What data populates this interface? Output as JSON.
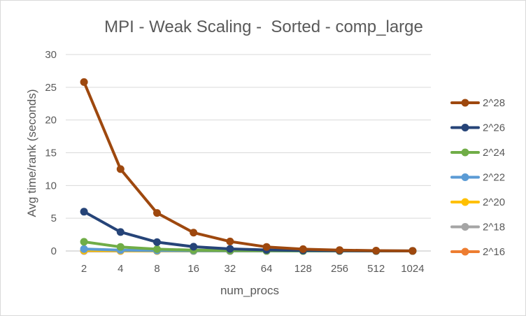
{
  "chart_data": {
    "type": "line",
    "title": "MPI - Weak Scaling -  Sorted - comp_large",
    "xlabel": "num_procs",
    "ylabel": "Avg time/rank (seconds)",
    "categories": [
      "2",
      "4",
      "8",
      "16",
      "32",
      "64",
      "128",
      "256",
      "512",
      "1024"
    ],
    "ylim": [
      0,
      30
    ],
    "yticks": [
      "0",
      "5",
      "10",
      "15",
      "20",
      "25",
      "30"
    ],
    "grid": true,
    "legend_position": "right",
    "series": [
      {
        "name": "2^28",
        "color": "#9e480e",
        "values": [
          25.8,
          12.5,
          5.8,
          2.8,
          1.45,
          0.62,
          0.28,
          0.14,
          0.05,
          0.02
        ]
      },
      {
        "name": "2^26",
        "color": "#264478",
        "values": [
          6.0,
          2.9,
          1.35,
          0.65,
          0.32,
          0.16,
          0.08,
          0.04,
          0.02,
          0.01
        ]
      },
      {
        "name": "2^24",
        "color": "#70ad47",
        "values": [
          1.4,
          0.62,
          0.28,
          0.13,
          0.07,
          0.035,
          0.02,
          0.01,
          0.006,
          0.003
        ]
      },
      {
        "name": "2^22",
        "color": "#5b9bd5",
        "values": [
          0.3,
          0.13,
          0.07,
          0.035,
          0.018,
          0.01,
          0.005,
          0.003,
          0.002,
          0.001
        ]
      },
      {
        "name": "2^20",
        "color": "#ffc000",
        "values": [
          0.08,
          0.04,
          0.02,
          0.01,
          0.005,
          0.003,
          0.002,
          0.001,
          0.001,
          0.001
        ]
      },
      {
        "name": "2^18",
        "color": "#a5a5a5",
        "values": [
          0.02,
          0.01,
          0.005,
          0.003,
          0.002,
          0.001,
          0.001,
          0.001,
          0.001,
          0.001
        ]
      },
      {
        "name": "2^16",
        "color": "#ed7d31",
        "values": [
          0.005,
          0.003,
          0.002,
          0.001,
          0.001,
          0.001,
          0.001,
          0.001,
          0.001,
          0.001
        ]
      }
    ]
  }
}
